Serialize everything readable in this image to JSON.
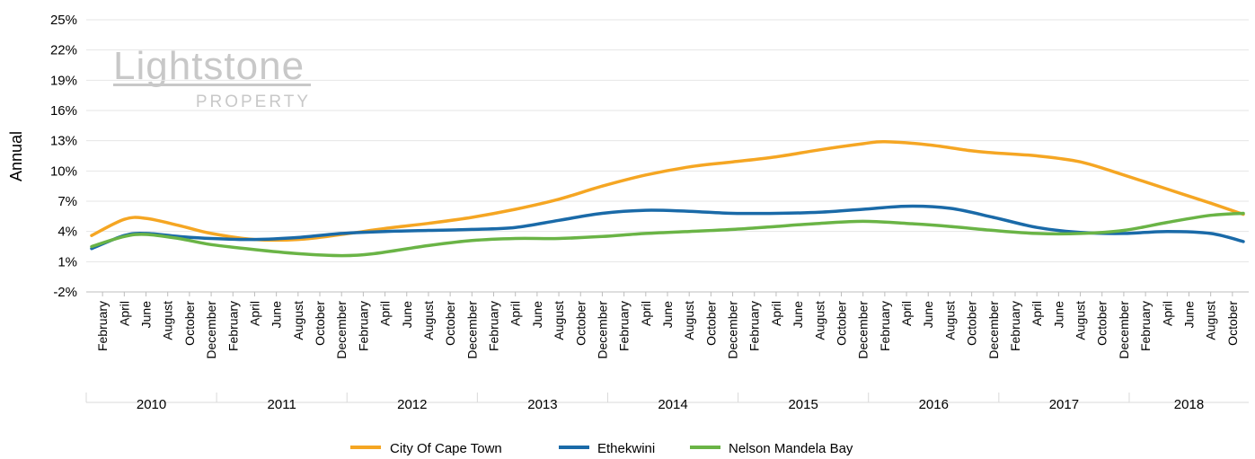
{
  "watermark": {
    "main": "Lightstone",
    "sub": "PROPERTY"
  },
  "chart_data": {
    "type": "line",
    "title": "",
    "ylabel": "Annual",
    "xlabel": "",
    "ylim": [
      -2,
      25
    ],
    "yticks": [
      -2,
      1,
      4,
      7,
      10,
      13,
      16,
      19,
      22,
      25
    ],
    "ytick_labels": [
      "-2%",
      "1%",
      "4%",
      "7%",
      "10%",
      "13%",
      "16%",
      "19%",
      "22%",
      "25%"
    ],
    "grid": "horizontal",
    "legend": "bottom",
    "x_month_labels": [
      "February",
      "April",
      "June",
      "August",
      "October",
      "December"
    ],
    "years": [
      "2010",
      "2011",
      "2012",
      "2013",
      "2014",
      "2015",
      "2016",
      "2017",
      "2018"
    ],
    "x_start": "2010-01",
    "x_end": "2018-11",
    "series": [
      {
        "name": "City Of Cape Town",
        "color": "#f5a623",
        "points": [
          [
            "2010-01",
            3.6
          ],
          [
            "2010-04",
            5.2
          ],
          [
            "2010-06",
            5.3
          ],
          [
            "2010-09",
            4.6
          ],
          [
            "2010-12",
            3.8
          ],
          [
            "2011-04",
            3.2
          ],
          [
            "2011-08",
            3.2
          ],
          [
            "2011-12",
            3.7
          ],
          [
            "2012-04",
            4.3
          ],
          [
            "2012-08",
            4.8
          ],
          [
            "2012-12",
            5.4
          ],
          [
            "2013-04",
            6.2
          ],
          [
            "2013-08",
            7.2
          ],
          [
            "2013-12",
            8.5
          ],
          [
            "2014-04",
            9.6
          ],
          [
            "2014-08",
            10.4
          ],
          [
            "2014-12",
            10.9
          ],
          [
            "2015-04",
            11.4
          ],
          [
            "2015-08",
            12.1
          ],
          [
            "2015-12",
            12.7
          ],
          [
            "2016-02",
            12.9
          ],
          [
            "2016-06",
            12.6
          ],
          [
            "2016-10",
            12.0
          ],
          [
            "2016-12",
            11.8
          ],
          [
            "2017-04",
            11.5
          ],
          [
            "2017-08",
            10.9
          ],
          [
            "2017-12",
            9.6
          ],
          [
            "2018-04",
            8.2
          ],
          [
            "2018-08",
            6.8
          ],
          [
            "2018-11",
            5.7
          ]
        ]
      },
      {
        "name": "Ethekwini",
        "color": "#1a6aa8",
        "points": [
          [
            "2010-01",
            2.3
          ],
          [
            "2010-04",
            3.6
          ],
          [
            "2010-06",
            3.8
          ],
          [
            "2010-09",
            3.5
          ],
          [
            "2010-12",
            3.3
          ],
          [
            "2011-04",
            3.2
          ],
          [
            "2011-08",
            3.4
          ],
          [
            "2011-12",
            3.8
          ],
          [
            "2012-04",
            4.0
          ],
          [
            "2012-08",
            4.1
          ],
          [
            "2012-12",
            4.2
          ],
          [
            "2013-04",
            4.4
          ],
          [
            "2013-08",
            5.1
          ],
          [
            "2013-12",
            5.8
          ],
          [
            "2014-04",
            6.1
          ],
          [
            "2014-08",
            6.0
          ],
          [
            "2014-12",
            5.8
          ],
          [
            "2015-04",
            5.8
          ],
          [
            "2015-08",
            5.9
          ],
          [
            "2015-12",
            6.2
          ],
          [
            "2016-04",
            6.5
          ],
          [
            "2016-08",
            6.3
          ],
          [
            "2016-12",
            5.4
          ],
          [
            "2017-04",
            4.4
          ],
          [
            "2017-08",
            3.9
          ],
          [
            "2017-12",
            3.8
          ],
          [
            "2018-04",
            4.0
          ],
          [
            "2018-08",
            3.8
          ],
          [
            "2018-11",
            3.0
          ]
        ]
      },
      {
        "name": "Nelson Mandela Bay",
        "color": "#6ab446",
        "points": [
          [
            "2010-01",
            2.5
          ],
          [
            "2010-04",
            3.5
          ],
          [
            "2010-06",
            3.7
          ],
          [
            "2010-09",
            3.3
          ],
          [
            "2010-12",
            2.7
          ],
          [
            "2011-04",
            2.2
          ],
          [
            "2011-08",
            1.8
          ],
          [
            "2011-12",
            1.6
          ],
          [
            "2012-03",
            1.8
          ],
          [
            "2012-08",
            2.6
          ],
          [
            "2012-12",
            3.1
          ],
          [
            "2013-04",
            3.3
          ],
          [
            "2013-08",
            3.3
          ],
          [
            "2013-12",
            3.5
          ],
          [
            "2014-04",
            3.8
          ],
          [
            "2014-08",
            4.0
          ],
          [
            "2014-12",
            4.2
          ],
          [
            "2015-04",
            4.5
          ],
          [
            "2015-08",
            4.8
          ],
          [
            "2015-12",
            5.0
          ],
          [
            "2016-04",
            4.8
          ],
          [
            "2016-08",
            4.5
          ],
          [
            "2016-12",
            4.1
          ],
          [
            "2017-04",
            3.8
          ],
          [
            "2017-08",
            3.8
          ],
          [
            "2017-12",
            4.1
          ],
          [
            "2018-04",
            4.9
          ],
          [
            "2018-08",
            5.6
          ],
          [
            "2018-11",
            5.8
          ]
        ]
      }
    ]
  }
}
